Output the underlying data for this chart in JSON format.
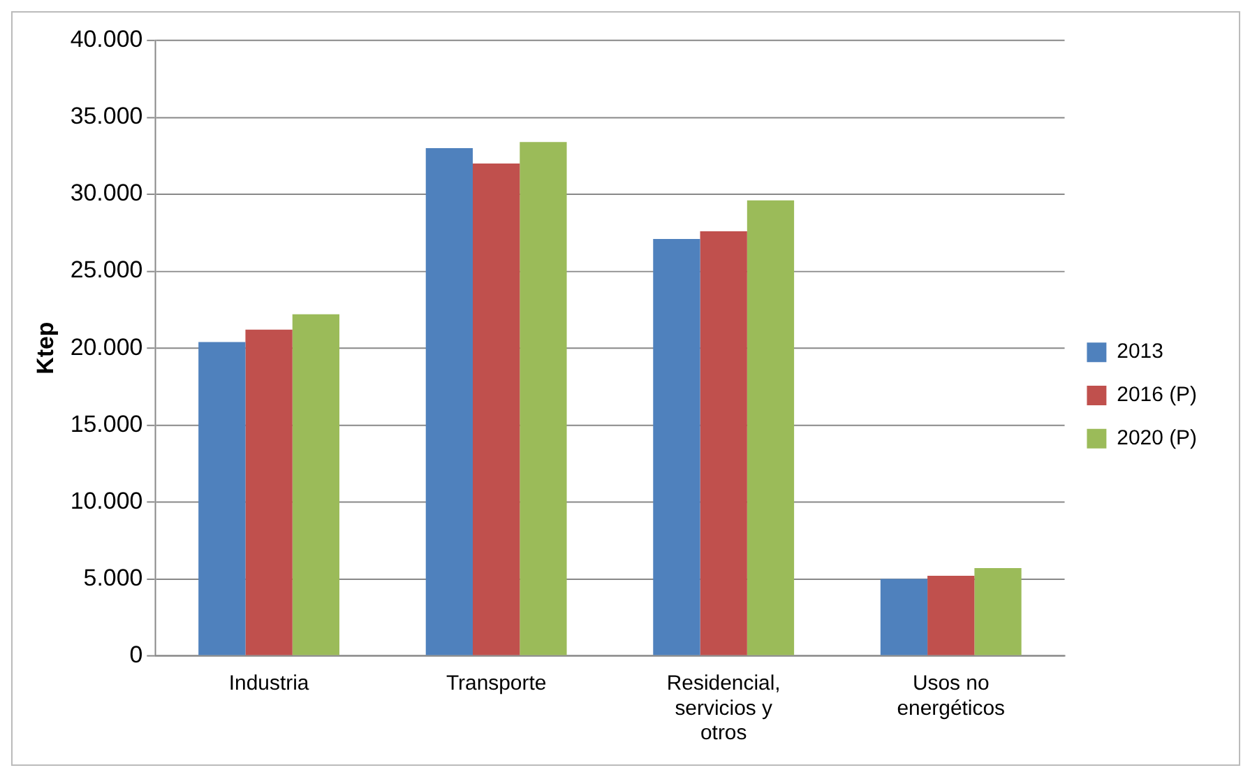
{
  "chart_data": {
    "type": "bar",
    "ylabel": "Ktep",
    "categories": [
      "Industria",
      "Transporte",
      "Residencial, servicios y otros",
      "Usos no energéticos"
    ],
    "series": [
      {
        "name": "2013",
        "color": "#4f81bd",
        "values": [
          20400,
          33000,
          27100,
          5000
        ]
      },
      {
        "name": "2016 (P)",
        "color": "#c0504d",
        "values": [
          21200,
          32000,
          27600,
          5200
        ]
      },
      {
        "name": "2020 (P)",
        "color": "#9bbb59",
        "values": [
          22200,
          33400,
          29600,
          5700
        ]
      }
    ],
    "ylim": [
      0,
      40000
    ],
    "yticks": [
      {
        "value": 0,
        "label": "0"
      },
      {
        "value": 5000,
        "label": "5.000"
      },
      {
        "value": 10000,
        "label": "10.000"
      },
      {
        "value": 15000,
        "label": "15.000"
      },
      {
        "value": 20000,
        "label": "20.000"
      },
      {
        "value": 25000,
        "label": "25.000"
      },
      {
        "value": 30000,
        "label": "30.000"
      },
      {
        "value": 35000,
        "label": "35.000"
      },
      {
        "value": 40000,
        "label": "40.000"
      }
    ],
    "grid": "y",
    "legend": "right"
  }
}
